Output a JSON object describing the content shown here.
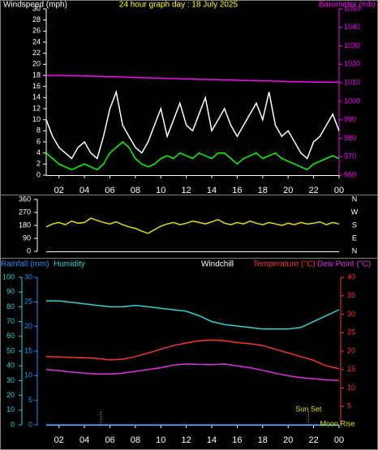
{
  "chart_data": [
    {
      "type": "line",
      "title": "24 hour graph day : 18 July 2025",
      "ylabel": "Windspeed (mph)",
      "y2label": "Barometer (mb)",
      "xlim": [
        1,
        24
      ],
      "xticks": [
        {
          "value": 2,
          "label": "02"
        },
        {
          "value": 4,
          "label": "04"
        },
        {
          "value": 6,
          "label": "06"
        },
        {
          "value": 8,
          "label": "08"
        },
        10,
        12,
        14,
        16,
        18,
        20,
        22,
        {
          "value": 24,
          "label": "00"
        }
      ],
      "ylim": [
        0,
        30
      ],
      "yticks": [
        0,
        2,
        4,
        6,
        8,
        10,
        12,
        14,
        16,
        18,
        20,
        22,
        24,
        26,
        28,
        30
      ],
      "y2lim": [
        960,
        1050
      ],
      "y2ticks": [
        960,
        970,
        980,
        990,
        1000,
        1010,
        1020,
        1030,
        1040,
        1050
      ],
      "x": [
        1,
        1.5,
        2,
        2.5,
        3,
        3.5,
        4,
        4.5,
        5,
        5.5,
        6,
        6.5,
        7,
        7.5,
        8,
        8.5,
        9,
        9.5,
        10,
        10.5,
        11,
        11.5,
        12,
        12.5,
        13,
        13.5,
        14,
        14.5,
        15,
        15.5,
        16,
        16.5,
        17,
        17.5,
        18,
        18.5,
        19,
        19.5,
        20,
        20.5,
        21,
        21.5,
        22,
        22.5,
        23,
        23.5,
        24
      ],
      "series": [
        {
          "color": "#ffffff",
          "values": [
            10,
            7,
            5,
            4,
            3,
            5,
            6,
            4,
            3,
            7,
            12,
            15,
            9,
            7,
            5,
            4,
            6,
            9,
            12,
            7,
            10,
            13,
            9,
            8,
            11,
            14,
            8,
            10,
            12,
            9,
            7,
            9,
            11,
            13,
            10,
            15,
            9,
            7,
            8,
            6,
            4,
            3,
            6,
            7,
            9,
            11,
            8
          ]
        },
        {
          "color": "#00ff00",
          "values": [
            4,
            3,
            2,
            1.5,
            1,
            1.5,
            2,
            1.5,
            1,
            2,
            4,
            5,
            6,
            5,
            3,
            2,
            1.5,
            2,
            3,
            3.5,
            3,
            4,
            3.5,
            3,
            4,
            3.5,
            3,
            4,
            4,
            3,
            2,
            3,
            3.5,
            4,
            3,
            3.5,
            4,
            3,
            2.5,
            2,
            1.5,
            1,
            2,
            2.5,
            3,
            3.5,
            3
          ]
        },
        {
          "color": "#ff00ff",
          "axis": "y2",
          "values": [
            1014,
            1014,
            1014,
            1013.9,
            1013.8,
            1013.8,
            1013.7,
            1013.6,
            1013.5,
            1013.4,
            1013.3,
            1013.2,
            1013.1,
            1013,
            1012.9,
            1012.8,
            1012.7,
            1012.6,
            1012.5,
            1012.4,
            1012.3,
            1012.2,
            1012.1,
            1012,
            1011.9,
            1011.8,
            1011.8,
            1011.7,
            1011.6,
            1011.5,
            1011.4,
            1011.3,
            1011.2,
            1011.1,
            1011,
            1011,
            1010.9,
            1010.8,
            1010.7,
            1010.6,
            1010.5,
            1010.5,
            1010.4,
            1010.4,
            1010.4,
            1010.3,
            1010.3
          ]
        }
      ]
    },
    {
      "type": "line",
      "xlim": [
        1,
        24
      ],
      "ylim": [
        0,
        360
      ],
      "yticks": [
        0,
        90,
        180,
        270,
        360
      ],
      "y2lim": [
        0,
        360
      ],
      "y2ticks": [
        {
          "value": 360,
          "label": "N"
        },
        {
          "value": 270,
          "label": "W"
        },
        {
          "value": 180,
          "label": "S"
        },
        {
          "value": 90,
          "label": "E"
        },
        {
          "value": 0,
          "label": "N"
        }
      ],
      "x": [
        1,
        1.5,
        2,
        2.5,
        3,
        3.5,
        4,
        4.5,
        5,
        5.5,
        6,
        6.5,
        7,
        7.5,
        8,
        8.5,
        9,
        9.5,
        10,
        10.5,
        11,
        11.5,
        12,
        12.5,
        13,
        13.5,
        14,
        14.5,
        15,
        15.5,
        16,
        16.5,
        17,
        17.5,
        18,
        18.5,
        19,
        19.5,
        20,
        20.5,
        21,
        21.5,
        22,
        22.5,
        23,
        23.5,
        24
      ],
      "series": [
        {
          "color": "#e0e000",
          "values": [
            170,
            190,
            200,
            185,
            210,
            195,
            200,
            230,
            215,
            200,
            190,
            205,
            185,
            170,
            160,
            140,
            125,
            150,
            175,
            190,
            200,
            185,
            195,
            210,
            200,
            190,
            205,
            220,
            195,
            185,
            200,
            190,
            210,
            195,
            185,
            200,
            190,
            180,
            195,
            185,
            200,
            190,
            195,
            205,
            185,
            200,
            190
          ]
        }
      ]
    },
    {
      "type": "line",
      "labels": [
        "Rainfall (mm)",
        "Humidity",
        "Windchill",
        "Temperature (°C)",
        "Dew Point (°C)"
      ],
      "xlim": [
        1,
        24
      ],
      "xticks": [
        {
          "value": 2,
          "label": "02"
        },
        {
          "value": 4,
          "label": "04"
        },
        {
          "value": 6,
          "label": "06"
        },
        {
          "value": 8,
          "label": "08"
        },
        10,
        12,
        14,
        16,
        18,
        20,
        22,
        {
          "value": 24,
          "label": "00"
        }
      ],
      "ylim": [
        0,
        100
      ],
      "yticks": [
        0,
        10,
        20,
        30,
        40,
        50,
        60,
        70,
        80,
        90,
        100
      ],
      "y3lim": [
        0,
        30
      ],
      "y3ticks": [
        0,
        5,
        10,
        15,
        20,
        25,
        30
      ],
      "y2lim": [
        0,
        40
      ],
      "y2ticks": [
        5,
        10,
        15,
        20,
        25,
        30,
        35,
        40
      ],
      "x": [
        1,
        2,
        3,
        4,
        5,
        6,
        7,
        8,
        9,
        10,
        11,
        12,
        13,
        14,
        15,
        16,
        17,
        18,
        19,
        20,
        21,
        22,
        23,
        24
      ],
      "series": [
        {
          "color": "#2ad4d4",
          "values": [
            84,
            84,
            83,
            82,
            81,
            80,
            80,
            81,
            80,
            79,
            78,
            77,
            74,
            70,
            68,
            67,
            66,
            65,
            65,
            65,
            66,
            70,
            74,
            78
          ]
        },
        {
          "color": "#ff3030",
          "axis": "y2",
          "values": [
            18.5,
            18.4,
            18.3,
            18.2,
            18,
            17.6,
            17.8,
            18.5,
            19.5,
            20.5,
            21.5,
            22.2,
            22.8,
            23,
            22.8,
            22.3,
            22,
            21.5,
            20.5,
            19.5,
            18.5,
            17.5,
            16,
            15.2
          ]
        },
        {
          "color": "#e030e0",
          "axis": "y2",
          "values": [
            15,
            14.7,
            14.3,
            14,
            13.8,
            13.8,
            14,
            14.5,
            15,
            15.5,
            16.2,
            16.5,
            16.4,
            16.3,
            16.5,
            16,
            15.5,
            14.8,
            14,
            13.3,
            12.8,
            12.5,
            12.2,
            12
          ]
        },
        {
          "color": "#1e90ff",
          "axis": "y3",
          "values": [
            0,
            0,
            0,
            0,
            0,
            0,
            0,
            0,
            0,
            0,
            0,
            0,
            0,
            0,
            0,
            0,
            0,
            0,
            0,
            0,
            0,
            0,
            0,
            0
          ]
        }
      ],
      "event_lines": [
        5.3,
        21.6
      ],
      "annotations": [
        {
          "text": "Sun Set",
          "x": 21.6
        },
        {
          "text": "Moon Rise",
          "x": 24
        }
      ]
    }
  ]
}
